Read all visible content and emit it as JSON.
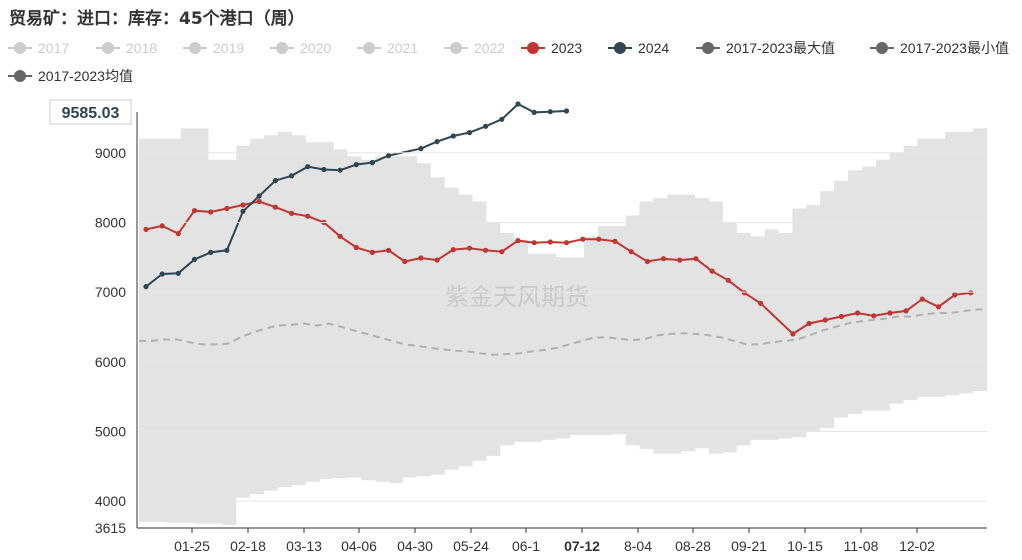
{
  "title": "贸易矿：进口：库存：45个港口（周）",
  "watermark": "紫金天风期货",
  "axis_pointer": {
    "y_value": "9585.03",
    "x_value": "07-12"
  },
  "colors": {
    "inactive": "#cccccc",
    "y2023": "#c23531",
    "y2024": "#2f4554",
    "band": "#e3e3e3",
    "avg": "#b0b0b0",
    "gray": "#666666"
  },
  "legend": [
    {
      "label": "2017",
      "color": "#cccccc",
      "active": false
    },
    {
      "label": "2018",
      "color": "#cccccc",
      "active": false
    },
    {
      "label": "2019",
      "color": "#cccccc",
      "active": false
    },
    {
      "label": "2020",
      "color": "#cccccc",
      "active": false
    },
    {
      "label": "2021",
      "color": "#cccccc",
      "active": false
    },
    {
      "label": "2022",
      "color": "#cccccc",
      "active": false
    },
    {
      "label": "2023",
      "color": "#c23531",
      "active": true
    },
    {
      "label": "2024",
      "color": "#2f4554",
      "active": true
    },
    {
      "label": "2017-2023最大值",
      "color": "#666666",
      "active": true
    },
    {
      "label": "2017-2023最小值",
      "color": "#666666",
      "active": true
    },
    {
      "label": "2017-2023均值",
      "color": "#666666",
      "active": true
    }
  ],
  "chart_data": {
    "type": "line",
    "title": "贸易矿：进口：库存：45个港口（周）",
    "x_tick_labels": [
      "01-25",
      "02-18",
      "03-13",
      "04-06",
      "04-30",
      "05-24",
      "06-1",
      "07-12",
      "8-04",
      "08-28",
      "09-21",
      "10-15",
      "11-08",
      "12-02"
    ],
    "yticks": [
      4000,
      5000,
      6000,
      7000,
      8000,
      9000
    ],
    "ylim": [
      3615,
      9585.03
    ],
    "grid": true,
    "series": [
      {
        "name": "2023",
        "type": "line",
        "values": [
          7900,
          7950,
          7840,
          8170,
          8150,
          8200,
          8250,
          8300,
          8220,
          8130,
          8090,
          8000,
          7800,
          7640,
          7570,
          7600,
          7440,
          7490,
          7460,
          7610,
          7630,
          7600,
          7580,
          7740,
          7710,
          7720,
          7710,
          7760,
          7760,
          7730,
          7580,
          7440,
          7480,
          7460,
          7480,
          7300,
          7170,
          6990,
          6840,
          null,
          6400,
          6550,
          6600,
          6650,
          6700,
          6660,
          6700,
          6730,
          6900,
          6790,
          6960,
          6990
        ]
      },
      {
        "name": "2024",
        "type": "line",
        "values": [
          7080,
          7260,
          7270,
          7470,
          7570,
          7600,
          8160,
          8380,
          8600,
          8670,
          8800,
          8760,
          8750,
          8830,
          8860,
          8960,
          null,
          9060,
          9160,
          9240,
          9290,
          9380,
          9480,
          9700,
          9580,
          9590,
          9600
        ]
      },
      {
        "name": "2017-2023最大值",
        "type": "band-upper",
        "values": [
          9200,
          9200,
          9200,
          9350,
          9350,
          8900,
          8900,
          9100,
          9200,
          9250,
          9300,
          9250,
          9150,
          9150,
          9050,
          8950,
          8900,
          8950,
          8950,
          8950,
          8850,
          8650,
          8500,
          8400,
          8300,
          8000,
          7850,
          7750,
          7550,
          7550,
          7500,
          7500,
          7800,
          7950,
          7950,
          8100,
          8300,
          8350,
          8400,
          8400,
          8350,
          8300,
          8000,
          7850,
          7800,
          7900,
          7850,
          8200,
          8250,
          8450,
          8600,
          8750,
          8800,
          8900,
          9000,
          9100,
          9200,
          9200,
          9300,
          9300,
          9350,
          9300
        ]
      },
      {
        "name": "2017-2023最小值",
        "type": "band-lower",
        "values": [
          3700,
          3700,
          3690,
          3690,
          3680,
          3680,
          3660,
          4050,
          4100,
          4150,
          4200,
          4230,
          4280,
          4320,
          4330,
          4340,
          4300,
          4280,
          4260,
          4340,
          4360,
          4380,
          4450,
          4500,
          4580,
          4650,
          4800,
          4850,
          4850,
          4880,
          4900,
          4950,
          4950,
          4950,
          4960,
          4800,
          4750,
          4680,
          4680,
          4720,
          4760,
          4680,
          4700,
          4800,
          4880,
          4880,
          4900,
          4920,
          5000,
          5050,
          5200,
          5250,
          5300,
          5300,
          5400,
          5450,
          5500,
          5500,
          5520,
          5550,
          5580,
          5600
        ]
      },
      {
        "name": "2017-2023均值",
        "type": "dashed",
        "values": [
          6300,
          6300,
          6320,
          6320,
          6280,
          6250,
          6250,
          6260,
          6350,
          6420,
          6480,
          6520,
          6530,
          6550,
          6520,
          6550,
          6500,
          6450,
          6400,
          6350,
          6300,
          6250,
          6230,
          6200,
          6180,
          6160,
          6150,
          6120,
          6100,
          6110,
          6120,
          6150,
          6170,
          6200,
          6250,
          6300,
          6350,
          6350,
          6330,
          6310,
          6330,
          6380,
          6400,
          6410,
          6400,
          6380,
          6350,
          6300,
          6250,
          6250,
          6280,
          6300,
          6320,
          6380,
          6450,
          6500,
          6550,
          6580,
          6600,
          6620,
          6650,
          6650,
          6680,
          6700,
          6700,
          6720,
          6750,
          6750
        ]
      }
    ]
  }
}
